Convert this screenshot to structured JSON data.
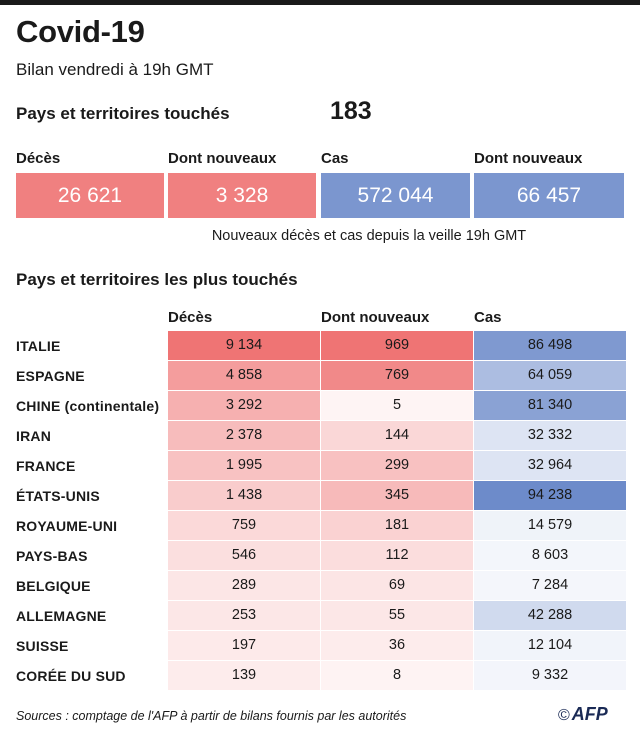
{
  "header": {
    "title": "Covid-19",
    "subtitle": "Bilan vendredi à 19h GMT"
  },
  "countries_affected": {
    "label": "Pays et territoires touchés",
    "value": "183"
  },
  "summary": {
    "labels": [
      "Décès",
      "Dont nouveaux",
      "Cas",
      "Dont nouveaux"
    ],
    "values": [
      "26 621",
      "3 328",
      "572 044",
      "66 457"
    ],
    "colors": [
      "#f08080",
      "#f08080",
      "#7b96cf",
      "#7b96cf"
    ],
    "note": "Nouveaux décès et cas depuis la veille 19h GMT"
  },
  "table": {
    "title": "Pays et territoires les plus touchés",
    "column_headers": [
      "Décès",
      "Dont nouveaux",
      "Cas"
    ]
  },
  "colors": {
    "deaths_scale": "#ef7474",
    "cases_scale": "#6d8bca"
  },
  "footer": {
    "source": "Sources : comptage de l'AFP à partir de bilans fournis par les autorités",
    "logo_text": "AFP",
    "copyright": "©"
  },
  "chart_data": {
    "type": "table",
    "title": "Pays et territoires les plus touchés",
    "columns": [
      "Décès",
      "Dont nouveaux",
      "Cas"
    ],
    "rows": [
      {
        "country": "ITALIE",
        "deaths": 9134,
        "new": 969,
        "cases": 86498,
        "deaths_text": "9 134",
        "new_text": "969",
        "cases_text": "86 498"
      },
      {
        "country": "ESPAGNE",
        "deaths": 4858,
        "new": 769,
        "cases": 64059,
        "deaths_text": "4 858",
        "new_text": "769",
        "cases_text": "64 059"
      },
      {
        "country": "CHINE (continentale)",
        "deaths": 3292,
        "new": 5,
        "cases": 81340,
        "deaths_text": "3 292",
        "new_text": "5",
        "cases_text": "81 340"
      },
      {
        "country": "IRAN",
        "deaths": 2378,
        "new": 144,
        "cases": 32332,
        "deaths_text": "2 378",
        "new_text": "144",
        "cases_text": "32 332"
      },
      {
        "country": "FRANCE",
        "deaths": 1995,
        "new": 299,
        "cases": 32964,
        "deaths_text": "1 995",
        "new_text": "299",
        "cases_text": "32 964"
      },
      {
        "country": "ÉTATS-UNIS",
        "deaths": 1438,
        "new": 345,
        "cases": 94238,
        "deaths_text": "1 438",
        "new_text": "345",
        "cases_text": "94 238"
      },
      {
        "country": "ROYAUME-UNI",
        "deaths": 759,
        "new": 181,
        "cases": 14579,
        "deaths_text": "759",
        "new_text": "181",
        "cases_text": "14 579"
      },
      {
        "country": "PAYS-BAS",
        "deaths": 546,
        "new": 112,
        "cases": 8603,
        "deaths_text": "546",
        "new_text": "112",
        "cases_text": "8 603"
      },
      {
        "country": "BELGIQUE",
        "deaths": 289,
        "new": 69,
        "cases": 7284,
        "deaths_text": "289",
        "new_text": "69",
        "cases_text": "7 284"
      },
      {
        "country": "ALLEMAGNE",
        "deaths": 253,
        "new": 55,
        "cases": 42288,
        "deaths_text": "253",
        "new_text": "55",
        "cases_text": "42 288"
      },
      {
        "country": "SUISSE",
        "deaths": 197,
        "new": 36,
        "cases": 12104,
        "deaths_text": "197",
        "new_text": "36",
        "cases_text": "12 104"
      },
      {
        "country": "CORÉE DU SUD",
        "deaths": 139,
        "new": 8,
        "cases": 9332,
        "deaths_text": "139",
        "new_text": "8",
        "cases_text": "9 332"
      }
    ]
  }
}
